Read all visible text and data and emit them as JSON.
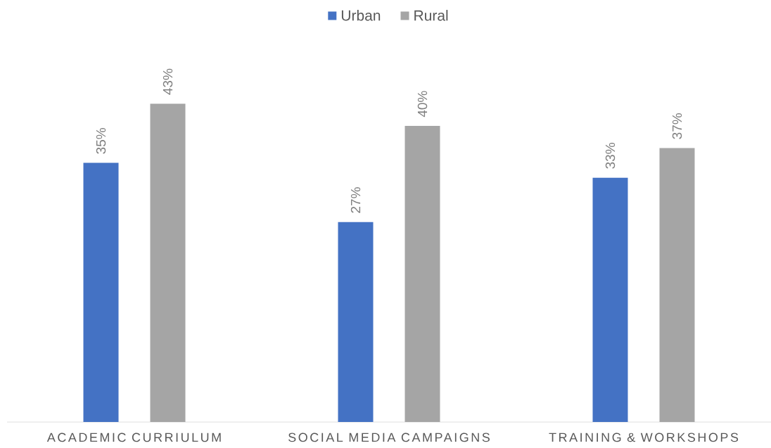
{
  "chart_data": {
    "type": "bar",
    "categories": [
      "ACADEMIC CURRIULUM",
      "SOCIAL MEDIA CAMPAIGNS",
      "TRAINING & WORKSHOPS"
    ],
    "series": [
      {
        "name": "Urban",
        "color": "#4472c4",
        "values": [
          35,
          27,
          33
        ],
        "value_labels": [
          "35%",
          "27%",
          "33%"
        ]
      },
      {
        "name": "Rural",
        "color": "#a5a5a5",
        "values": [
          43,
          40,
          37
        ],
        "value_labels": [
          "43%",
          "40%",
          "37%"
        ]
      }
    ],
    "legend": "top",
    "tick_labels": "x"
  }
}
